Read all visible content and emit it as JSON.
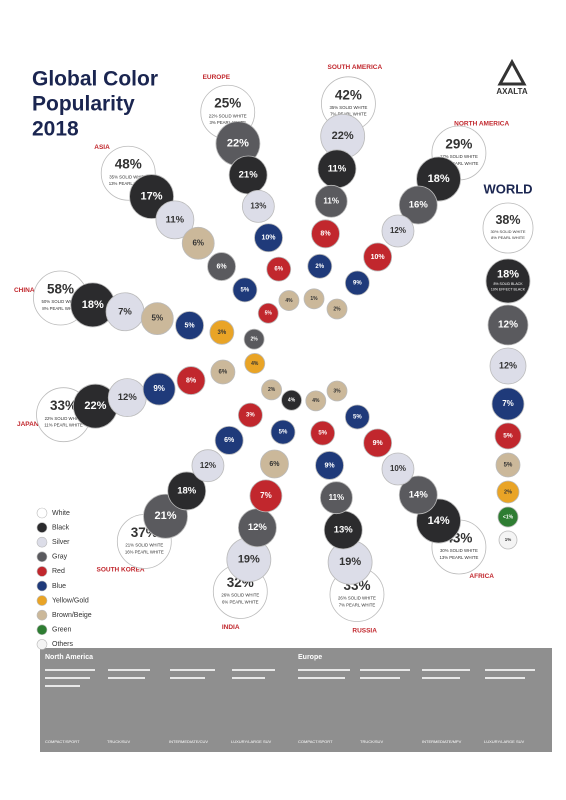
{
  "title": [
    "Global Color",
    "Popularity",
    "2018"
  ],
  "logo": "AXALTA",
  "world": {
    "title": "WORLD",
    "items": [
      {
        "label": "38%",
        "sub": [
          "30% SOLID WHITE",
          "8% PEARL WHITE"
        ],
        "color": "#ffffff"
      },
      {
        "label": "18%",
        "sub": [
          "8% SOLID BLACK",
          "10% EFFECT BLACK"
        ],
        "color": "#2b2b2d"
      },
      {
        "label": "12%",
        "color": "#5a5a5e"
      },
      {
        "label": "12%",
        "color": "#dcdde8"
      },
      {
        "label": "7%",
        "color": "#1f3a7a"
      },
      {
        "label": "5%",
        "color": "#c1272d"
      },
      {
        "label": "5%",
        "color": "#cbb89a"
      },
      {
        "label": "2%",
        "color": "#e9a426"
      },
      {
        "label": "<1%",
        "color": "#2e7d32"
      },
      {
        "label": "1%",
        "color": "#f4f4f4"
      }
    ]
  },
  "regions": [
    {
      "name": "SOUTH AMERICA",
      "items": [
        {
          "label": "42%",
          "sub": [
            "35% SOLID WHITE",
            "7% PEARL WHITE"
          ],
          "color": "#ffffff"
        },
        {
          "label": "22%",
          "color": "#dcdde8"
        },
        {
          "label": "11%",
          "color": "#2b2b2d"
        },
        {
          "label": "11%",
          "color": "#5a5a5e"
        },
        {
          "label": "8%",
          "color": "#c1272d"
        },
        {
          "label": "2%",
          "color": "#1f3a7a"
        },
        {
          "label": "1%",
          "color": "#cbb89a"
        }
      ]
    },
    {
      "name": "NORTH AMERICA",
      "items": [
        {
          "label": "29%",
          "sub": [
            "17% SOLID WHITE",
            "12% PEARL WHITE"
          ],
          "color": "#ffffff"
        },
        {
          "label": "18%",
          "color": "#2b2b2d"
        },
        {
          "label": "16%",
          "color": "#5a5a5e"
        },
        {
          "label": "12%",
          "color": "#dcdde8"
        },
        {
          "label": "10%",
          "color": "#c1272d"
        },
        {
          "label": "9%",
          "color": "#1f3a7a"
        },
        {
          "label": "2%",
          "color": "#cbb89a"
        }
      ]
    },
    {
      "name": "EUROPE",
      "items": [
        {
          "label": "25%",
          "sub": [
            "22% SOLID WHITE",
            "3% PEARL WHITE"
          ],
          "color": "#ffffff"
        },
        {
          "label": "22%",
          "color": "#5a5a5e"
        },
        {
          "label": "21%",
          "color": "#2b2b2d"
        },
        {
          "label": "13%",
          "color": "#dcdde8"
        },
        {
          "label": "10%",
          "color": "#1f3a7a"
        },
        {
          "label": "6%",
          "color": "#c1272d"
        },
        {
          "label": "4%",
          "color": "#cbb89a"
        }
      ]
    },
    {
      "name": "ASIA",
      "items": [
        {
          "label": "48%",
          "sub": [
            "35% SOLID WHITE",
            "13% PEARL WHITE"
          ],
          "color": "#ffffff"
        },
        {
          "label": "17%",
          "color": "#2b2b2d"
        },
        {
          "label": "11%",
          "color": "#dcdde8"
        },
        {
          "label": "6%",
          "color": "#cbb89a"
        },
        {
          "label": "6%",
          "color": "#5a5a5e"
        },
        {
          "label": "5%",
          "color": "#1f3a7a"
        },
        {
          "label": "5%",
          "color": "#c1272d"
        }
      ]
    },
    {
      "name": "CHINA",
      "items": [
        {
          "label": "58%",
          "sub": [
            "50% SOLID WHITE",
            "8% PEARL WHITE"
          ],
          "color": "#ffffff"
        },
        {
          "label": "18%",
          "color": "#2b2b2d"
        },
        {
          "label": "7%",
          "color": "#dcdde8"
        },
        {
          "label": "5%",
          "color": "#cbb89a"
        },
        {
          "label": "5%",
          "color": "#1f3a7a"
        },
        {
          "label": "3%",
          "color": "#e9a426"
        },
        {
          "label": "2%",
          "color": "#5a5a5e"
        }
      ]
    },
    {
      "name": "JAPAN",
      "items": [
        {
          "label": "33%",
          "sub": [
            "22% SOLID WHITE",
            "11% PEARL WHITE"
          ],
          "color": "#ffffff"
        },
        {
          "label": "22%",
          "color": "#2b2b2d"
        },
        {
          "label": "12%",
          "color": "#dcdde8"
        },
        {
          "label": "9%",
          "color": "#1f3a7a"
        },
        {
          "label": "8%",
          "color": "#c1272d"
        },
        {
          "label": "6%",
          "color": "#cbb89a"
        },
        {
          "label": "4%",
          "color": "#e9a426"
        }
      ]
    },
    {
      "name": "SOUTH KOREA",
      "items": [
        {
          "label": "37%",
          "sub": [
            "21% SOLID WHITE",
            "16% PEARL WHITE"
          ],
          "color": "#ffffff"
        },
        {
          "label": "21%",
          "color": "#5a5a5e"
        },
        {
          "label": "18%",
          "color": "#2b2b2d"
        },
        {
          "label": "12%",
          "color": "#dcdde8"
        },
        {
          "label": "6%",
          "color": "#1f3a7a"
        },
        {
          "label": "3%",
          "color": "#c1272d"
        },
        {
          "label": "2%",
          "color": "#cbb89a"
        }
      ]
    },
    {
      "name": "INDIA",
      "items": [
        {
          "label": "32%",
          "sub": [
            "26% SOLID WHITE",
            "6% PEARL WHITE"
          ],
          "color": "#ffffff"
        },
        {
          "label": "19%",
          "color": "#dcdde8"
        },
        {
          "label": "12%",
          "color": "#5a5a5e"
        },
        {
          "label": "7%",
          "color": "#c1272d"
        },
        {
          "label": "6%",
          "color": "#cbb89a"
        },
        {
          "label": "5%",
          "color": "#1f3a7a"
        },
        {
          "label": "4%",
          "color": "#2b2b2d"
        }
      ]
    },
    {
      "name": "RUSSIA",
      "items": [
        {
          "label": "33%",
          "sub": [
            "26% SOLID WHITE",
            "7% PEARL WHITE"
          ],
          "color": "#ffffff"
        },
        {
          "label": "19%",
          "color": "#dcdde8"
        },
        {
          "label": "13%",
          "color": "#2b2b2d"
        },
        {
          "label": "11%",
          "color": "#5a5a5e"
        },
        {
          "label": "9%",
          "color": "#1f3a7a"
        },
        {
          "label": "5%",
          "color": "#c1272d"
        },
        {
          "label": "4%",
          "color": "#cbb89a"
        }
      ]
    },
    {
      "name": "AFRICA",
      "items": [
        {
          "label": "43%",
          "sub": [
            "30% SOLID WHITE",
            "13% PEARL WHITE"
          ],
          "color": "#ffffff"
        },
        {
          "label": "14%",
          "color": "#2b2b2d"
        },
        {
          "label": "14%",
          "color": "#5a5a5e"
        },
        {
          "label": "10%",
          "color": "#dcdde8"
        },
        {
          "label": "9%",
          "color": "#c1272d"
        },
        {
          "label": "5%",
          "color": "#1f3a7a"
        },
        {
          "label": "3%",
          "color": "#cbb89a"
        }
      ]
    }
  ],
  "legend": [
    {
      "name": "White",
      "color": "#ffffff"
    },
    {
      "name": "Black",
      "color": "#2b2b2d"
    },
    {
      "name": "Silver",
      "color": "#dcdde8"
    },
    {
      "name": "Gray",
      "color": "#5a5a5e"
    },
    {
      "name": "Red",
      "color": "#c1272d"
    },
    {
      "name": "Blue",
      "color": "#1f3a7a"
    },
    {
      "name": "Yellow/Gold",
      "color": "#e9a426"
    },
    {
      "name": "Brown/Beige",
      "color": "#cbb89a"
    },
    {
      "name": "Green",
      "color": "#2e7d32"
    },
    {
      "name": "Others",
      "color": "#f4f4f4"
    }
  ],
  "segments": [
    {
      "name": "North America",
      "columns": [
        "COMPACT/SPORT",
        "TRUCK/SUV",
        "INTERMEDIATE/CUV",
        "LUXURY/LARGE SUV"
      ]
    },
    {
      "name": "Europe",
      "columns": [
        "COMPACT/SPORT",
        "TRUCK/SUV",
        "INTERMEDIATE/MPV",
        "LUXURY/LARGE SUV"
      ]
    }
  ]
}
